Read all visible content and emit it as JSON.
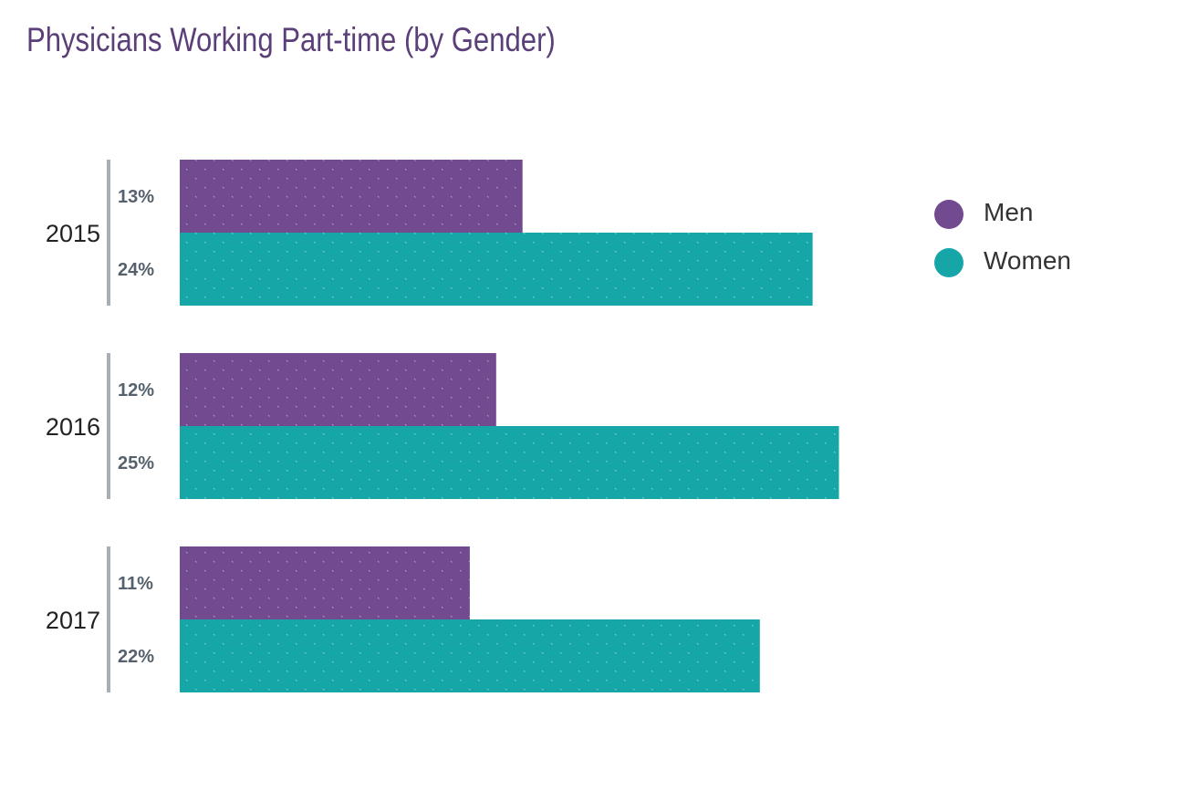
{
  "chart_data": {
    "type": "bar",
    "orientation": "horizontal",
    "title": "Physicians Working Part-time (by Gender)",
    "categories": [
      "2015",
      "2016",
      "2017"
    ],
    "series": [
      {
        "name": "Men",
        "values": [
          13,
          12,
          11
        ],
        "labels": [
          "13%",
          "12%",
          "11%"
        ]
      },
      {
        "name": "Women",
        "values": [
          24,
          25,
          22
        ],
        "labels": [
          "24%",
          "25%",
          "22%"
        ]
      }
    ],
    "xlim": [
      0,
      25
    ],
    "xlabel": "",
    "ylabel": "",
    "grid": false,
    "legend": "top-right"
  },
  "colors": {
    "title": "#5b3f78",
    "men": "#714a8f",
    "women": "#17a6a8",
    "bracket": "#a7aeb5",
    "value_label": "#55626d",
    "category_label": "#222222",
    "legend_text": "#333333"
  }
}
